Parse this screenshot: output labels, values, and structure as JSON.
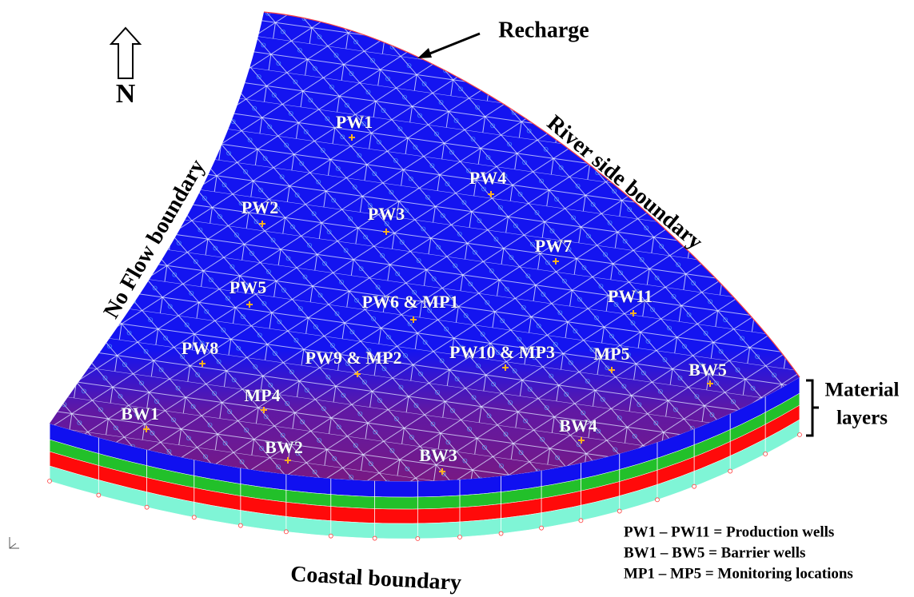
{
  "north": "N",
  "boundaries": {
    "recharge": "Recharge",
    "river": "River side boundary",
    "no_flow": "No Flow boundary",
    "coastal": "Coastal boundary"
  },
  "wells": [
    "PW1",
    "PW2",
    "PW3",
    "PW4",
    "PW5",
    "PW6 & MP1",
    "PW7",
    "PW8",
    "PW9 & MP2",
    "PW10 & MP3",
    "MP5",
    "PW11",
    "BW5",
    "MP4",
    "BW1",
    "BW2",
    "BW3",
    "BW4"
  ],
  "material_layers": [
    "Material",
    "layers"
  ],
  "legend": [
    "PW1 – PW11 = Production wells",
    "BW1 – BW5 = Barrier wells",
    "MP1 – MP5 = Monitoring locations"
  ]
}
